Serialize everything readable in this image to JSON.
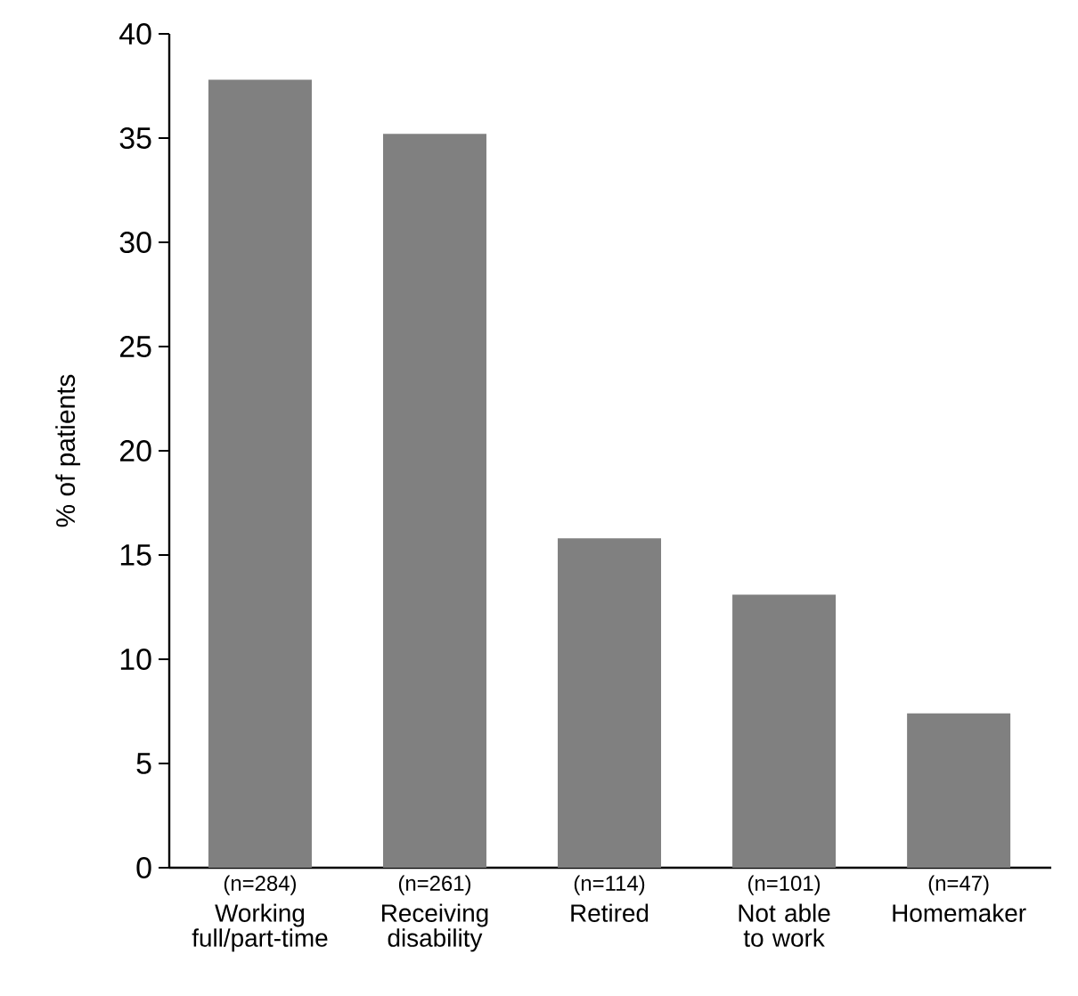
{
  "chart_data": {
    "type": "bar",
    "ylabel": "% of patients",
    "categories": [
      "Working full/part-time",
      "Receiving disability",
      "Retired",
      "Not able to work",
      "Homemaker"
    ],
    "values": [
      37.8,
      35.2,
      15.8,
      13.1,
      7.4
    ],
    "color": "#808080",
    "ylim": [
      0,
      40
    ],
    "yticks": [
      0,
      5,
      10,
      15,
      20,
      25,
      30,
      35,
      40
    ],
    "annotations": [
      "(n=284)",
      "(n=261)",
      "(n=114)",
      "(n=101)",
      "(n=47)"
    ],
    "grid": false
  }
}
